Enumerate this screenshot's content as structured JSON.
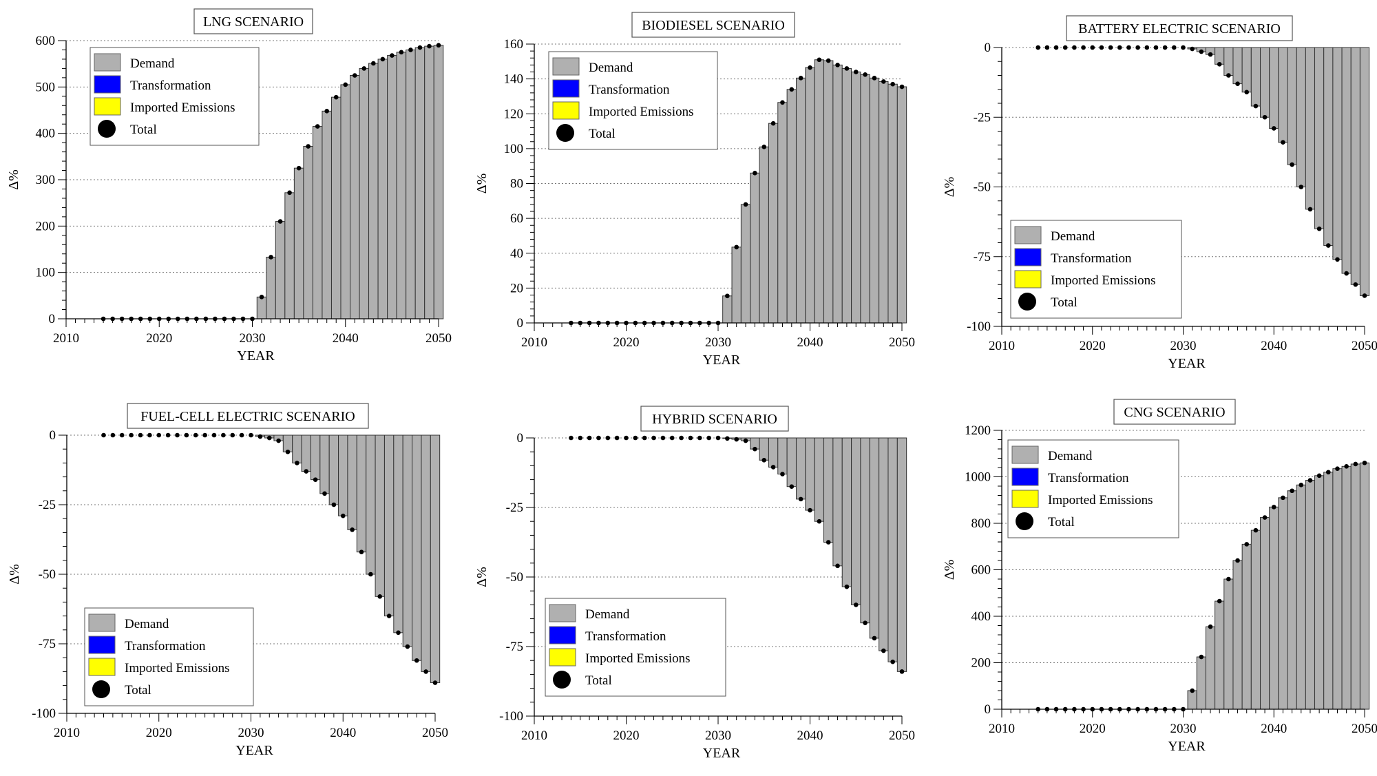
{
  "figure_title": "",
  "legend": {
    "entries": [
      {
        "label": "Demand",
        "color": "#b0b0b0",
        "marker": "square"
      },
      {
        "label": "Transformation",
        "color": "#0000ff",
        "marker": "square"
      },
      {
        "label": "Imported Emissions",
        "color": "#ffff00",
        "marker": "square"
      },
      {
        "label": "Total",
        "color": "#000000",
        "marker": "circle"
      }
    ]
  },
  "colors": {
    "bar": "#b0b0b0",
    "bar_edge": "#333333",
    "dot": "#000000",
    "grid": "#777777"
  },
  "chart_data": [
    {
      "type": "bar",
      "title": "LNG SCENARIO",
      "xlabel": "YEAR",
      "ylabel": "Δ%",
      "xlim": [
        2010,
        2050
      ],
      "xticks": [
        2010,
        2020,
        2030,
        2040,
        2050
      ],
      "ylim": [
        0,
        600
      ],
      "yticks": [
        0,
        100,
        200,
        300,
        400,
        500,
        600
      ],
      "legend_position": "top-left",
      "years": [
        2014,
        2015,
        2016,
        2017,
        2018,
        2019,
        2020,
        2021,
        2022,
        2023,
        2024,
        2025,
        2026,
        2027,
        2028,
        2029,
        2030,
        2031,
        2032,
        2033,
        2034,
        2035,
        2036,
        2037,
        2038,
        2039,
        2040,
        2041,
        2042,
        2043,
        2044,
        2045,
        2046,
        2047,
        2048,
        2049,
        2050
      ],
      "series": [
        {
          "name": "Demand",
          "values": [
            0,
            0,
            0,
            0,
            0,
            0,
            0,
            0,
            0,
            0,
            0,
            0,
            0,
            0,
            0,
            0,
            0,
            47,
            133,
            210,
            272,
            325,
            372,
            415,
            448,
            478,
            505,
            525,
            540,
            551,
            560,
            568,
            575,
            580,
            585,
            588,
            590
          ]
        },
        {
          "name": "Total",
          "values": [
            0,
            0,
            0,
            0,
            0,
            0,
            0,
            0,
            0,
            0,
            0,
            0,
            0,
            0,
            0,
            0,
            0,
            47,
            133,
            210,
            272,
            325,
            372,
            415,
            448,
            478,
            505,
            525,
            540,
            551,
            560,
            568,
            575,
            580,
            585,
            588,
            590
          ]
        }
      ]
    },
    {
      "type": "bar",
      "title": "BIODIESEL SCENARIO",
      "xlabel": "YEAR",
      "ylabel": "Δ%",
      "xlim": [
        2010,
        2050
      ],
      "xticks": [
        2010,
        2020,
        2030,
        2040,
        2050
      ],
      "ylim": [
        0,
        160
      ],
      "yticks": [
        0,
        20,
        40,
        60,
        80,
        100,
        120,
        140,
        160
      ],
      "legend_position": "top-left",
      "years": [
        2014,
        2015,
        2016,
        2017,
        2018,
        2019,
        2020,
        2021,
        2022,
        2023,
        2024,
        2025,
        2026,
        2027,
        2028,
        2029,
        2030,
        2031,
        2032,
        2033,
        2034,
        2035,
        2036,
        2037,
        2038,
        2039,
        2040,
        2041,
        2042,
        2043,
        2044,
        2045,
        2046,
        2047,
        2048,
        2049,
        2050
      ],
      "series": [
        {
          "name": "Demand",
          "values": [
            0,
            0,
            0,
            0,
            0,
            0,
            0,
            0,
            0,
            0,
            0,
            0,
            0,
            0,
            0,
            0,
            0,
            15.5,
            43.5,
            68,
            86,
            101,
            114.5,
            126.5,
            134,
            140.5,
            146.5,
            151,
            150.5,
            148,
            146,
            144,
            142.5,
            140.5,
            138.5,
            137,
            135.5
          ]
        },
        {
          "name": "Total",
          "values": [
            0,
            0,
            0,
            0,
            0,
            0,
            0,
            0,
            0,
            0,
            0,
            0,
            0,
            0,
            0,
            0,
            0,
            15.5,
            43.5,
            68,
            86,
            101,
            114.5,
            126.5,
            134,
            140.5,
            146.5,
            151,
            150.5,
            148,
            146,
            144,
            142.5,
            140.5,
            138.5,
            137,
            135.5
          ]
        }
      ]
    },
    {
      "type": "bar",
      "title": "BATTERY ELECTRIC SCENARIO",
      "xlabel": "YEAR",
      "ylabel": "Δ%",
      "xlim": [
        2010,
        2050
      ],
      "xticks": [
        2010,
        2020,
        2030,
        2040,
        2050
      ],
      "ylim": [
        -100,
        0
      ],
      "yticks": [
        -100,
        -75,
        -50,
        -25,
        0
      ],
      "legend_position": "bottom-left",
      "years": [
        2014,
        2015,
        2016,
        2017,
        2018,
        2019,
        2020,
        2021,
        2022,
        2023,
        2024,
        2025,
        2026,
        2027,
        2028,
        2029,
        2030,
        2031,
        2032,
        2033,
        2034,
        2035,
        2036,
        2037,
        2038,
        2039,
        2040,
        2041,
        2042,
        2043,
        2044,
        2045,
        2046,
        2047,
        2048,
        2049,
        2050
      ],
      "series": [
        {
          "name": "Demand",
          "values": [
            0,
            0,
            0,
            0,
            0,
            0,
            0,
            0,
            0,
            0,
            0,
            0,
            0,
            0,
            0,
            0,
            0,
            -0.5,
            -1.5,
            -2.5,
            -6,
            -10,
            -13,
            -16,
            -21,
            -25,
            -29,
            -34,
            -42,
            -50,
            -58,
            -65,
            -71,
            -76,
            -81,
            -85,
            -89
          ]
        },
        {
          "name": "Total",
          "values": [
            0,
            0,
            0,
            0,
            0,
            0,
            0,
            0,
            0,
            0,
            0,
            0,
            0,
            0,
            0,
            0,
            0,
            -0.5,
            -1.5,
            -2.5,
            -6,
            -10,
            -13,
            -16,
            -21,
            -25,
            -29,
            -34,
            -42,
            -50,
            -58,
            -65,
            -71,
            -76,
            -81,
            -85,
            -89
          ]
        }
      ]
    },
    {
      "type": "bar",
      "title": "FUEL-CELL ELECTRIC SCENARIO",
      "xlabel": "YEAR",
      "ylabel": "Δ%",
      "xlim": [
        2010,
        2050
      ],
      "xticks": [
        2010,
        2020,
        2030,
        2040,
        2050
      ],
      "ylim": [
        -100,
        0
      ],
      "yticks": [
        -100,
        -75,
        -50,
        -25,
        0
      ],
      "legend_position": "bottom-left",
      "years": [
        2014,
        2015,
        2016,
        2017,
        2018,
        2019,
        2020,
        2021,
        2022,
        2023,
        2024,
        2025,
        2026,
        2027,
        2028,
        2029,
        2030,
        2031,
        2032,
        2033,
        2034,
        2035,
        2036,
        2037,
        2038,
        2039,
        2040,
        2041,
        2042,
        2043,
        2044,
        2045,
        2046,
        2047,
        2048,
        2049,
        2050
      ],
      "series": [
        {
          "name": "Demand",
          "values": [
            0,
            0,
            0,
            0,
            0,
            0,
            0,
            0,
            0,
            0,
            0,
            0,
            0,
            0,
            0,
            0,
            0,
            -0.5,
            -1,
            -2,
            -6,
            -10,
            -13,
            -16,
            -21,
            -25,
            -29,
            -34,
            -42,
            -50,
            -58,
            -65,
            -71,
            -76,
            -81,
            -85,
            -89
          ]
        },
        {
          "name": "Total",
          "values": [
            0,
            0,
            0,
            0,
            0,
            0,
            0,
            0,
            0,
            0,
            0,
            0,
            0,
            0,
            0,
            0,
            0,
            -0.5,
            -1,
            -2,
            -6,
            -10,
            -13,
            -16,
            -21,
            -25,
            -29,
            -34,
            -42,
            -50,
            -58,
            -65,
            -71,
            -76,
            -81,
            -85,
            -89
          ]
        }
      ]
    },
    {
      "type": "bar",
      "title": "HYBRID SCENARIO",
      "xlabel": "YEAR",
      "ylabel": "Δ%",
      "xlim": [
        2010,
        2050
      ],
      "xticks": [
        2010,
        2020,
        2030,
        2040,
        2050
      ],
      "ylim": [
        -100,
        0
      ],
      "yticks": [
        -100,
        -75,
        -50,
        -25,
        0
      ],
      "legend_position": "bottom-left",
      "years": [
        2014,
        2015,
        2016,
        2017,
        2018,
        2019,
        2020,
        2021,
        2022,
        2023,
        2024,
        2025,
        2026,
        2027,
        2028,
        2029,
        2030,
        2031,
        2032,
        2033,
        2034,
        2035,
        2036,
        2037,
        2038,
        2039,
        2040,
        2041,
        2042,
        2043,
        2044,
        2045,
        2046,
        2047,
        2048,
        2049,
        2050
      ],
      "series": [
        {
          "name": "Demand",
          "values": [
            0,
            0,
            0,
            0,
            0,
            0,
            0,
            0,
            0,
            0,
            0,
            0,
            0,
            0,
            0,
            0,
            0,
            -0.2,
            -0.5,
            -1,
            -4,
            -8,
            -10.5,
            -13,
            -17.5,
            -22,
            -26,
            -30,
            -37.5,
            -46,
            -53.5,
            -60,
            -66.5,
            -72,
            -76.5,
            -80.5,
            -84
          ]
        },
        {
          "name": "Total",
          "values": [
            0,
            0,
            0,
            0,
            0,
            0,
            0,
            0,
            0,
            0,
            0,
            0,
            0,
            0,
            0,
            0,
            0,
            -0.2,
            -0.5,
            -1,
            -4,
            -8,
            -10.5,
            -13,
            -17.5,
            -22,
            -26,
            -30,
            -37.5,
            -46,
            -53.5,
            -60,
            -66.5,
            -72,
            -76.5,
            -80.5,
            -84
          ]
        }
      ]
    },
    {
      "type": "bar",
      "title": "CNG SCENARIO",
      "xlabel": "YEAR",
      "ylabel": "Δ%",
      "xlim": [
        2010,
        2050
      ],
      "xticks": [
        2010,
        2020,
        2030,
        2040,
        2050
      ],
      "ylim": [
        0,
        1200
      ],
      "yticks": [
        0,
        200,
        400,
        600,
        800,
        1000,
        1200
      ],
      "legend_position": "top-left",
      "years": [
        2014,
        2015,
        2016,
        2017,
        2018,
        2019,
        2020,
        2021,
        2022,
        2023,
        2024,
        2025,
        2026,
        2027,
        2028,
        2029,
        2030,
        2031,
        2032,
        2033,
        2034,
        2035,
        2036,
        2037,
        2038,
        2039,
        2040,
        2041,
        2042,
        2043,
        2044,
        2045,
        2046,
        2047,
        2048,
        2049,
        2050
      ],
      "series": [
        {
          "name": "Demand",
          "values": [
            0,
            0,
            0,
            0,
            0,
            0,
            0,
            0,
            0,
            0,
            0,
            0,
            0,
            0,
            0,
            0,
            0,
            80,
            225,
            355,
            465,
            560,
            640,
            710,
            770,
            825,
            870,
            910,
            940,
            965,
            985,
            1005,
            1020,
            1035,
            1045,
            1055,
            1060
          ]
        },
        {
          "name": "Total",
          "values": [
            0,
            0,
            0,
            0,
            0,
            0,
            0,
            0,
            0,
            0,
            0,
            0,
            0,
            0,
            0,
            0,
            0,
            80,
            225,
            355,
            465,
            560,
            640,
            710,
            770,
            825,
            870,
            910,
            940,
            965,
            985,
            1005,
            1020,
            1035,
            1045,
            1055,
            1060
          ]
        }
      ]
    }
  ]
}
